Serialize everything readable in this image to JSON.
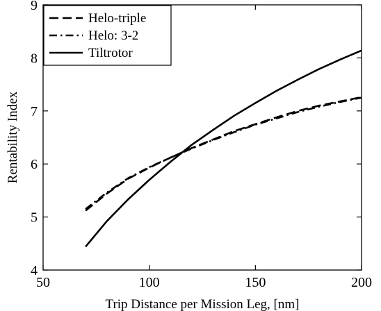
{
  "chart_data": {
    "type": "line",
    "xlabel": "Trip Distance per Mission Leg, [nm]",
    "ylabel": "Rentability Index",
    "xlim": [
      50,
      200
    ],
    "ylim": [
      4,
      9
    ],
    "x_ticks": [
      50,
      100,
      150,
      200
    ],
    "y_ticks": [
      4,
      5,
      6,
      7,
      8,
      9
    ],
    "grid": false,
    "legend_position": "top-left",
    "series": [
      {
        "name": "Helo-triple",
        "style": "dashed",
        "color": "#000000",
        "x": [
          70,
          80,
          90,
          100,
          110,
          120,
          130,
          140,
          150,
          160,
          170,
          180,
          190,
          200
        ],
        "y": [
          5.12,
          5.44,
          5.72,
          5.93,
          6.12,
          6.3,
          6.46,
          6.62,
          6.75,
          6.88,
          7.0,
          7.1,
          7.18,
          7.26
        ]
      },
      {
        "name": "Helo: 3-2",
        "style": "dashdot",
        "color": "#000000",
        "x": [
          70,
          80,
          90,
          100,
          110,
          120,
          130,
          140,
          150,
          160,
          170,
          180,
          190,
          200
        ],
        "y": [
          5.15,
          5.46,
          5.73,
          5.94,
          6.12,
          6.29,
          6.45,
          6.6,
          6.74,
          6.86,
          6.98,
          7.08,
          7.17,
          7.25
        ]
      },
      {
        "name": "Tiltrotor",
        "style": "solid",
        "color": "#000000",
        "x": [
          70,
          80,
          90,
          100,
          110,
          120,
          130,
          140,
          150,
          160,
          170,
          180,
          190,
          200
        ],
        "y": [
          4.44,
          4.92,
          5.33,
          5.7,
          6.04,
          6.36,
          6.64,
          6.91,
          7.15,
          7.38,
          7.59,
          7.79,
          7.97,
          8.14
        ]
      }
    ]
  }
}
